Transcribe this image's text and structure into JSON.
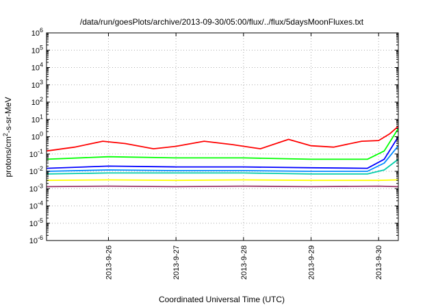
{
  "chart_data": {
    "type": "line",
    "title": "/data/run/goesPlots/archive/2013-09-30/05:00/flux/../flux/5daysMoonFluxes.txt",
    "xlabel": "Coordinated Universal Time (UTC)",
    "ylabel": {
      "prefix": "protons/cm",
      "sup": "2",
      "suffix": "-s-sr-MeV"
    },
    "y_scale": "log",
    "ylim": [
      1e-06,
      1000000.0
    ],
    "y_ticks": [
      {
        "base": "10",
        "exp": "-6"
      },
      {
        "base": "10",
        "exp": "-5"
      },
      {
        "base": "10",
        "exp": "-4"
      },
      {
        "base": "10",
        "exp": "-3"
      },
      {
        "base": "10",
        "exp": "-2"
      },
      {
        "base": "10",
        "exp": "-1"
      },
      {
        "base": "10",
        "exp": "0"
      },
      {
        "base": "10",
        "exp": "1"
      },
      {
        "base": "10",
        "exp": "2"
      },
      {
        "base": "10",
        "exp": "3"
      },
      {
        "base": "10",
        "exp": "4"
      },
      {
        "base": "10",
        "exp": "5"
      },
      {
        "base": "10",
        "exp": "6"
      }
    ],
    "xlim": [
      "2013-09-25T02:00",
      "2013-09-30T07:00"
    ],
    "x_ticks": [
      "2013-9-26",
      "2013-9-27",
      "2013-9-28",
      "2013-9-29",
      "2013-9-30"
    ],
    "grid": true,
    "legend": "none",
    "series": [
      {
        "color": "#ff0000",
        "x": [
          "2013-09-25T02:00",
          "2013-09-25T12:00",
          "2013-09-25T22:00",
          "2013-09-26T06:00",
          "2013-09-26T16:00",
          "2013-09-27T00:00",
          "2013-09-27T10:00",
          "2013-09-27T20:00",
          "2013-09-28T06:00",
          "2013-09-28T16:00",
          "2013-09-29T00:00",
          "2013-09-29T08:00",
          "2013-09-29T18:00",
          "2013-09-30T00:00",
          "2013-09-30T04:00",
          "2013-09-30T07:00"
        ],
        "values": [
          0.15,
          0.25,
          0.55,
          0.4,
          0.2,
          0.28,
          0.55,
          0.35,
          0.2,
          0.7,
          0.3,
          0.25,
          0.55,
          0.6,
          1.5,
          4
        ]
      },
      {
        "color": "#00ff00",
        "x": [
          "2013-09-25T02:00",
          "2013-09-26T00:00",
          "2013-09-27T00:00",
          "2013-09-28T00:00",
          "2013-09-29T00:00",
          "2013-09-29T20:00",
          "2013-09-30T02:00",
          "2013-09-30T07:00"
        ],
        "values": [
          0.05,
          0.07,
          0.06,
          0.06,
          0.05,
          0.05,
          0.15,
          3
        ]
      },
      {
        "color": "#0000ff",
        "x": [
          "2013-09-25T02:00",
          "2013-09-26T00:00",
          "2013-09-27T00:00",
          "2013-09-28T00:00",
          "2013-09-29T00:00",
          "2013-09-29T20:00",
          "2013-09-30T02:00",
          "2013-09-30T07:00"
        ],
        "values": [
          0.015,
          0.02,
          0.018,
          0.018,
          0.016,
          0.015,
          0.05,
          1
        ]
      },
      {
        "color": "#0088ff",
        "x": [
          "2013-09-25T02:00",
          "2013-09-26T00:00",
          "2013-09-27T00:00",
          "2013-09-28T00:00",
          "2013-09-29T00:00",
          "2013-09-29T20:00",
          "2013-09-30T02:00",
          "2013-09-30T07:00"
        ],
        "values": [
          0.01,
          0.012,
          0.011,
          0.011,
          0.01,
          0.01,
          0.03,
          0.3
        ]
      },
      {
        "color": "#00ccaa",
        "x": [
          "2013-09-25T02:00",
          "2013-09-26T00:00",
          "2013-09-27T00:00",
          "2013-09-28T00:00",
          "2013-09-29T00:00",
          "2013-09-29T20:00",
          "2013-09-30T02:00",
          "2013-09-30T07:00"
        ],
        "values": [
          0.007,
          0.008,
          0.008,
          0.008,
          0.007,
          0.007,
          0.012,
          0.05
        ]
      },
      {
        "color": "#ffff00",
        "x": [
          "2013-09-25T02:00",
          "2013-09-26T00:00",
          "2013-09-27T00:00",
          "2013-09-28T00:00",
          "2013-09-29T00:00",
          "2013-09-30T00:00",
          "2013-09-30T07:00"
        ],
        "values": [
          0.003,
          0.0032,
          0.003,
          0.0032,
          0.003,
          0.003,
          0.0032
        ]
      },
      {
        "color": "#993366",
        "x": [
          "2013-09-25T02:00",
          "2013-09-26T00:00",
          "2013-09-27T00:00",
          "2013-09-28T00:00",
          "2013-09-29T00:00",
          "2013-09-30T00:00",
          "2013-09-30T07:00"
        ],
        "values": [
          0.0013,
          0.0014,
          0.0013,
          0.0014,
          0.0013,
          0.0014,
          0.0013
        ]
      }
    ]
  }
}
